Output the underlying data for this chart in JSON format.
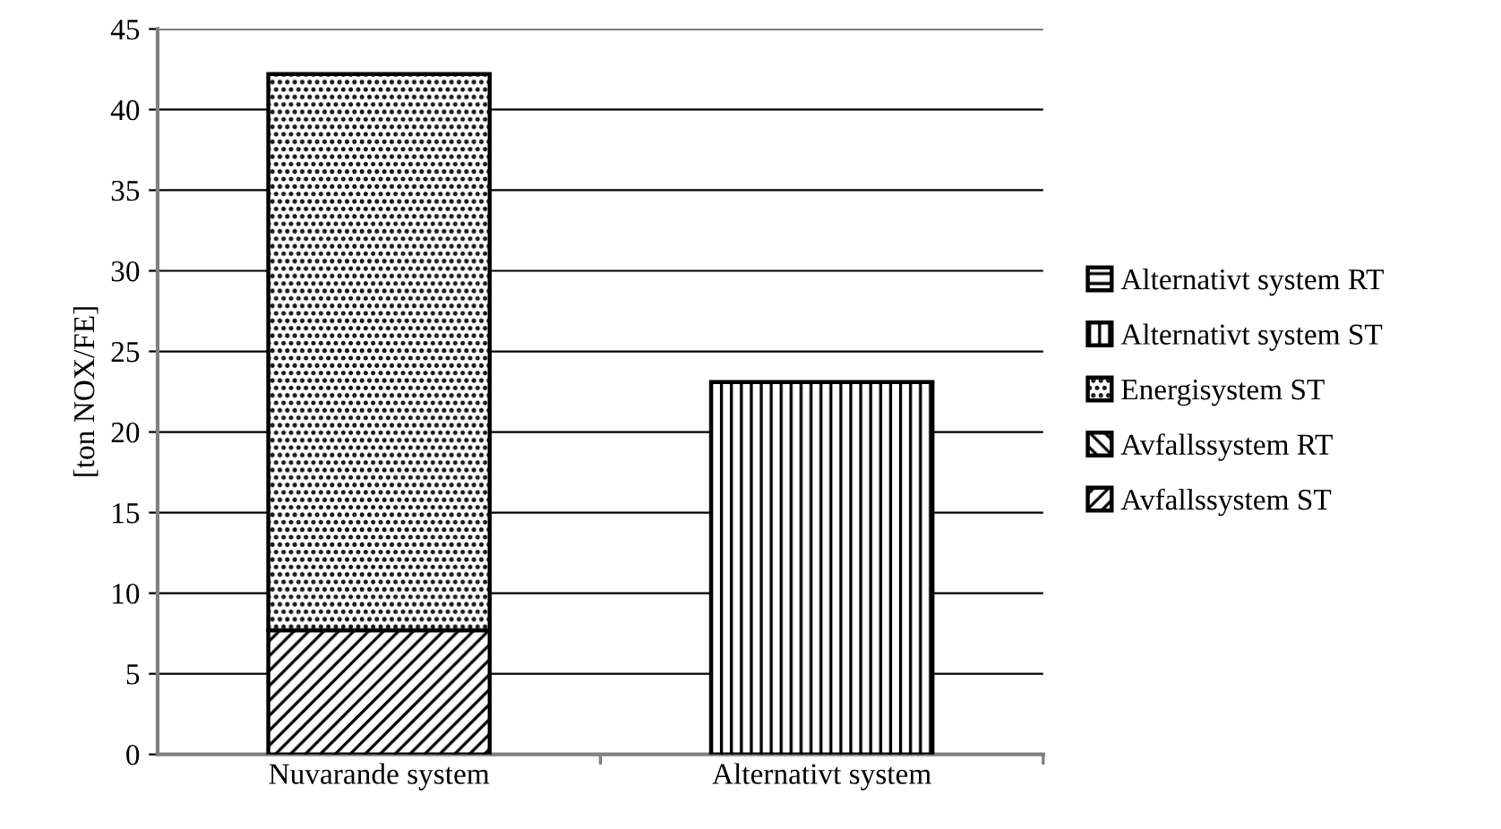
{
  "chart_data": {
    "type": "bar",
    "stacked": true,
    "ylabel": "[ton NOX/FE]",
    "categories": [
      "Nuvarande system",
      "Alternativt system"
    ],
    "series": [
      {
        "name": "Avfallssystem ST",
        "color": "#000000",
        "values": [
          7.7,
          null
        ]
      },
      {
        "name": "Avfallssystem RT",
        "color": "#000000",
        "values": [
          null,
          null
        ]
      },
      {
        "name": "Energisystem ST",
        "color": "#000000",
        "values": [
          34.5,
          null
        ]
      },
      {
        "name": "Alternativt system ST",
        "color": "#000000",
        "values": [
          null,
          23.1
        ]
      },
      {
        "name": "Alternativt system RT",
        "color": "#000000",
        "values": [
          null,
          null
        ]
      }
    ],
    "ylim": [
      0,
      45
    ],
    "yticks": [
      0,
      5,
      10,
      15,
      20,
      25,
      30,
      35,
      40,
      45
    ],
    "grid": "y",
    "legend": "right"
  }
}
